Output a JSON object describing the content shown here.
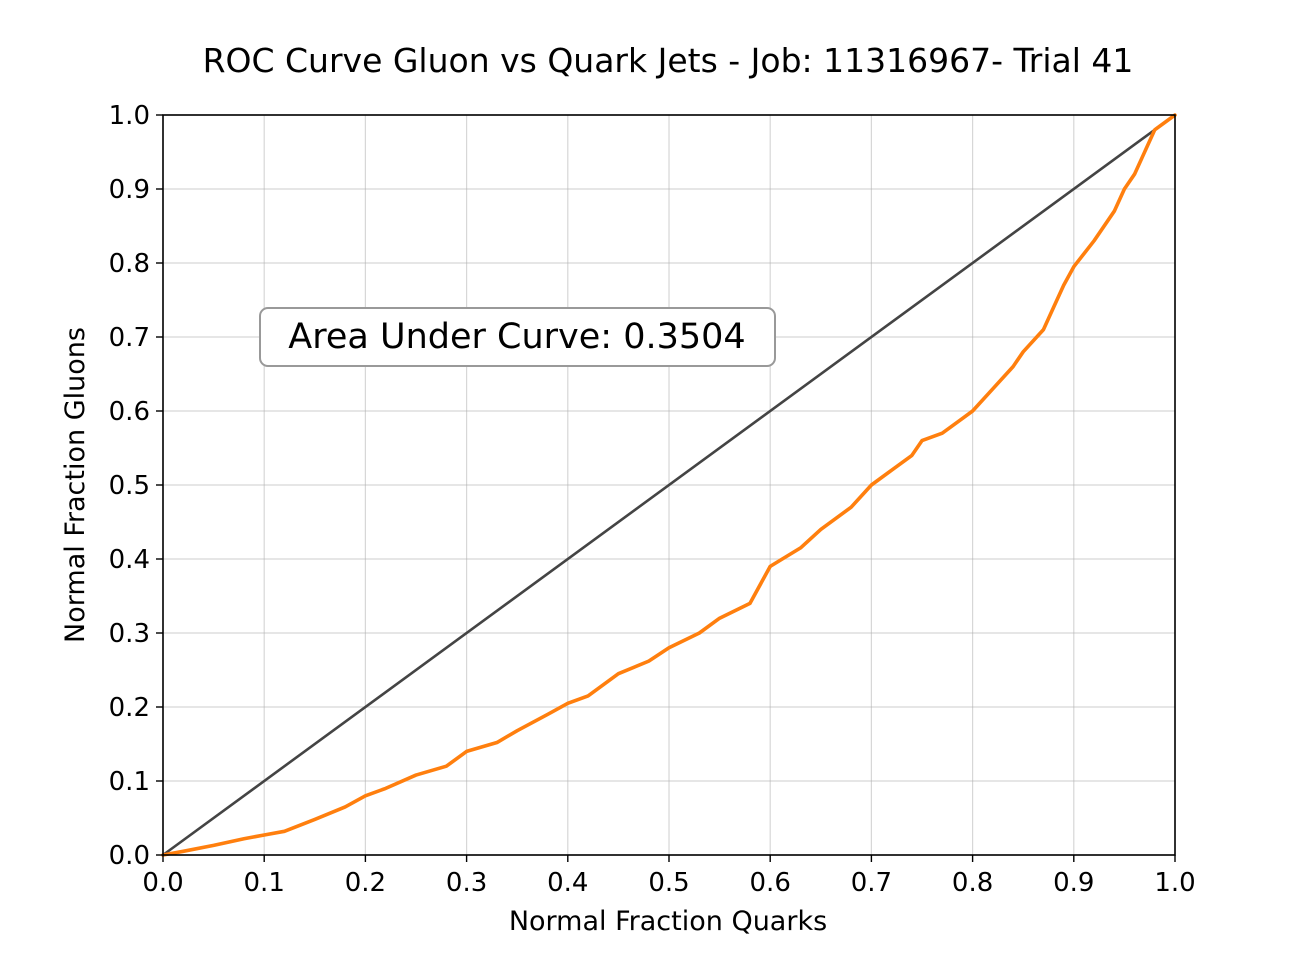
{
  "chart_data": {
    "type": "line",
    "title": "ROC Curve Gluon vs Quark Jets - Job: 11316967- Trial 41",
    "xlabel": "Normal Fraction Quarks",
    "ylabel": "Normal Fraction Gluons",
    "xlim": [
      0.0,
      1.0
    ],
    "ylim": [
      0.0,
      1.0
    ],
    "xticks": [
      "0.0",
      "0.1",
      "0.2",
      "0.3",
      "0.4",
      "0.5",
      "0.6",
      "0.7",
      "0.8",
      "0.9",
      "1.0"
    ],
    "yticks": [
      "0.0",
      "0.1",
      "0.2",
      "0.3",
      "0.4",
      "0.5",
      "0.6",
      "0.7",
      "0.8",
      "0.9",
      "1.0"
    ],
    "grid": true,
    "annotation": "Area Under Curve: 0.3504",
    "series": [
      {
        "color": "#444444",
        "x": [
          0.0,
          1.0
        ],
        "y": [
          0.0,
          1.0
        ]
      },
      {
        "color": "#ff7f0e",
        "x": [
          0.0,
          0.02,
          0.05,
          0.08,
          0.1,
          0.12,
          0.15,
          0.18,
          0.2,
          0.22,
          0.25,
          0.28,
          0.3,
          0.33,
          0.35,
          0.38,
          0.4,
          0.42,
          0.45,
          0.48,
          0.5,
          0.53,
          0.55,
          0.58,
          0.6,
          0.63,
          0.65,
          0.68,
          0.7,
          0.72,
          0.74,
          0.75,
          0.77,
          0.79,
          0.8,
          0.82,
          0.84,
          0.85,
          0.87,
          0.88,
          0.89,
          0.9,
          0.92,
          0.94,
          0.95,
          0.96,
          0.98,
          1.0
        ],
        "y": [
          0.0,
          0.005,
          0.013,
          0.022,
          0.027,
          0.032,
          0.048,
          0.065,
          0.08,
          0.09,
          0.108,
          0.12,
          0.14,
          0.152,
          0.168,
          0.19,
          0.205,
          0.215,
          0.245,
          0.262,
          0.28,
          0.3,
          0.32,
          0.34,
          0.39,
          0.415,
          0.44,
          0.47,
          0.5,
          0.52,
          0.54,
          0.56,
          0.57,
          0.59,
          0.6,
          0.63,
          0.66,
          0.68,
          0.71,
          0.74,
          0.77,
          0.795,
          0.83,
          0.87,
          0.9,
          0.92,
          0.98,
          1.0
        ]
      }
    ]
  }
}
